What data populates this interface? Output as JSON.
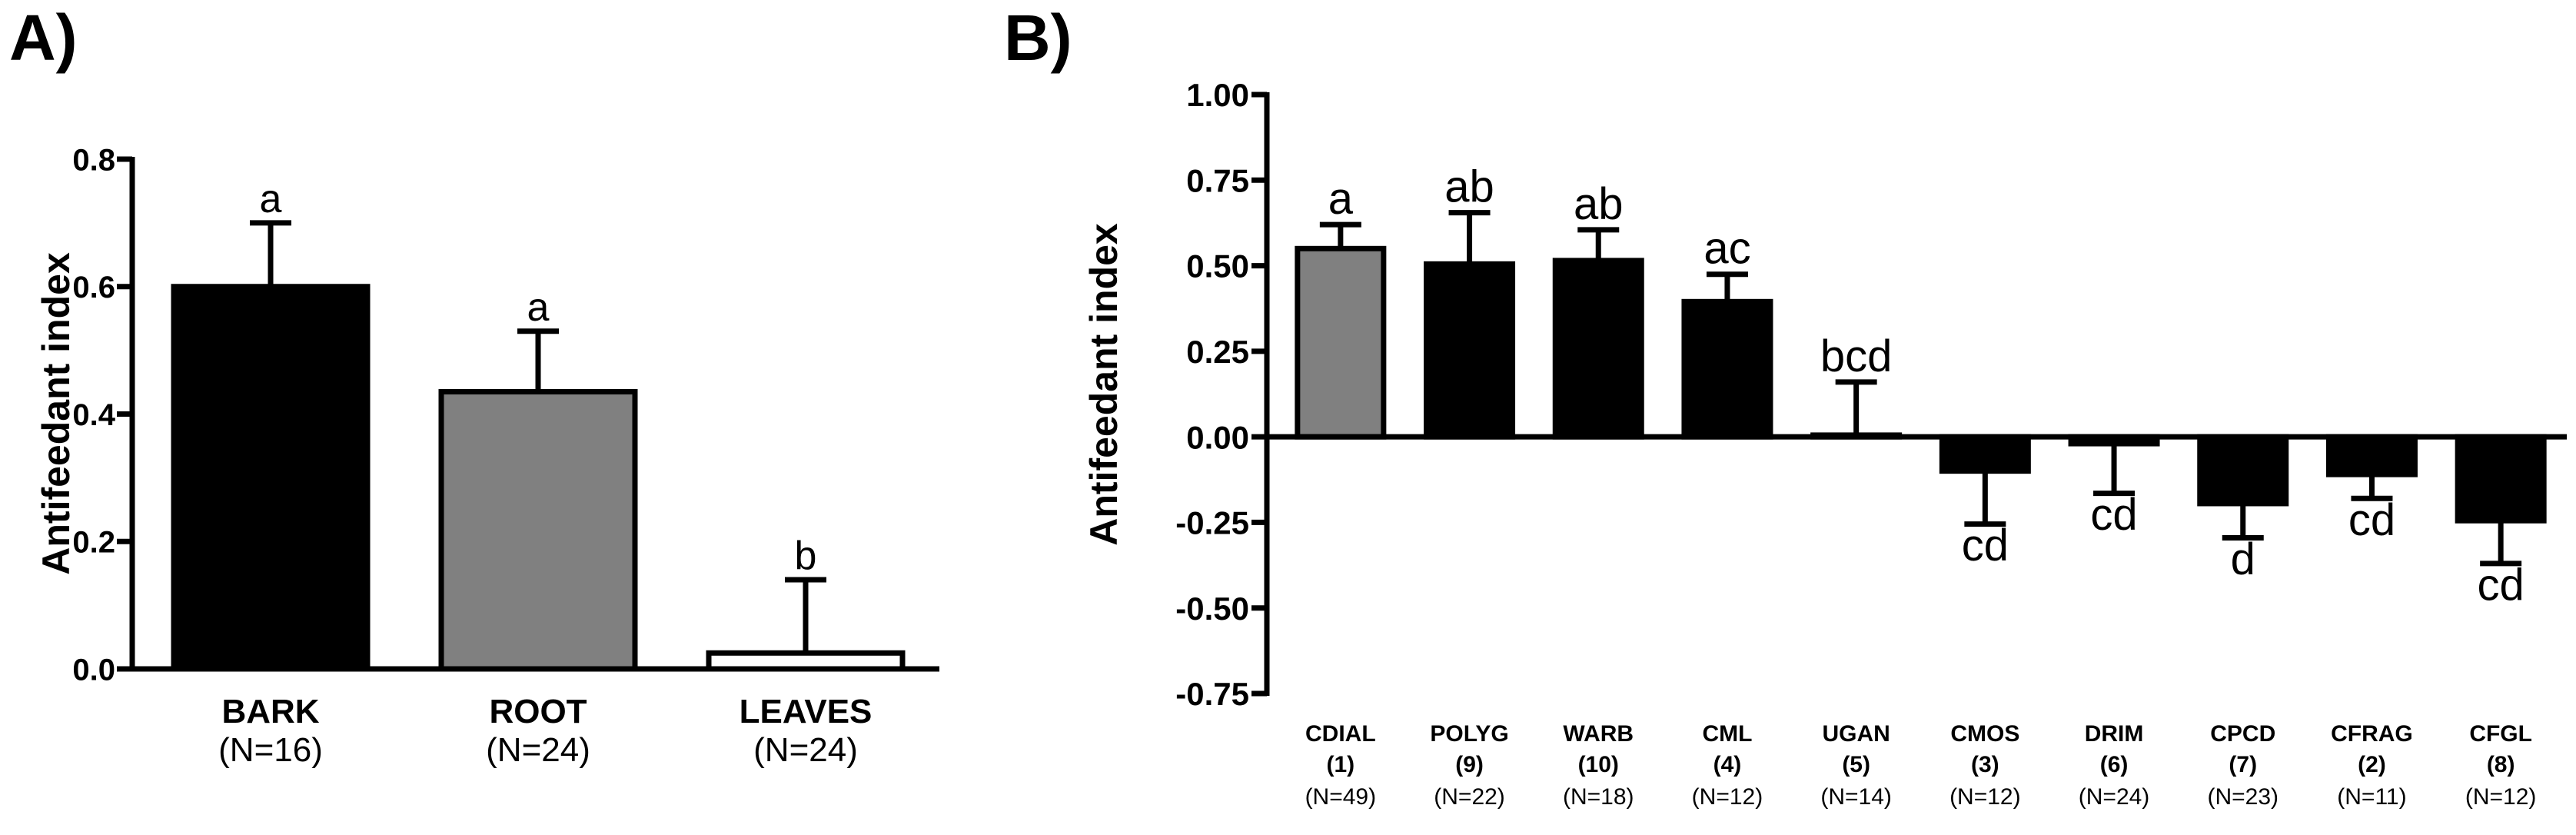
{
  "chart_data": [
    {
      "panel": "A)",
      "type": "bar",
      "ylabel": "Antifeedant index",
      "ylim": [
        0,
        0.8
      ],
      "yticks": [
        "0.0",
        "0.2",
        "0.4",
        "0.6",
        "0.8"
      ],
      "yticks_values": [
        0,
        0.2,
        0.4,
        0.6,
        0.8
      ],
      "categories": [
        "BARK",
        "ROOT",
        "LEAVES"
      ],
      "sample_sizes": [
        "(N=16)",
        "(N=24)",
        "(N=24)"
      ],
      "values": [
        0.6,
        0.435,
        0.025
      ],
      "error_bars": [
        0.1,
        0.095,
        0.115
      ],
      "significance": [
        "a",
        "a",
        "b"
      ],
      "bar_fills": [
        "#000000",
        "#808080",
        "#ffffff"
      ]
    },
    {
      "panel": "B)",
      "type": "bar",
      "ylabel": "Antifeedant index",
      "ylim": [
        -0.75,
        1.0
      ],
      "yticks": [
        "1.00",
        "0.75",
        "0.50",
        "0.25",
        "0.00",
        "-0.25",
        "-0.50",
        "-0.75"
      ],
      "yticks_values": [
        1.0,
        0.75,
        0.5,
        0.25,
        0,
        -0.25,
        -0.5,
        -0.75
      ],
      "categories": [
        "CDIAL",
        "POLYG",
        "WARB",
        "CML",
        "UGAN",
        "CMOS",
        "DRIM",
        "CPCD",
        "CFRAG",
        "CFGL"
      ],
      "group_numbers": [
        "(1)",
        "(9)",
        "(10)",
        "(4)",
        "(5)",
        "(3)",
        "(6)",
        "(7)",
        "(2)",
        "(8)"
      ],
      "sample_sizes": [
        "(N=49)",
        "(N=22)",
        "(N=18)",
        "(N=12)",
        "(N=14)",
        "(N=12)",
        "(N=24)",
        "(N=23)",
        "(N=11)",
        "(N=12)"
      ],
      "values": [
        0.55,
        0.505,
        0.515,
        0.395,
        0.005,
        -0.1,
        -0.02,
        -0.195,
        -0.11,
        -0.245
      ],
      "error_bars": [
        0.07,
        0.15,
        0.09,
        0.08,
        0.155,
        0.155,
        0.145,
        0.1,
        0.07,
        0.125
      ],
      "significance": [
        "a",
        "ab",
        "ab",
        "ac",
        "bcd",
        "cd",
        "cd",
        "d",
        "cd",
        "cd"
      ],
      "bar_fills": [
        "#808080",
        "#000000",
        "#000000",
        "#000000",
        "#000000",
        "#000000",
        "#000000",
        "#000000",
        "#000000",
        "#000000"
      ]
    }
  ]
}
